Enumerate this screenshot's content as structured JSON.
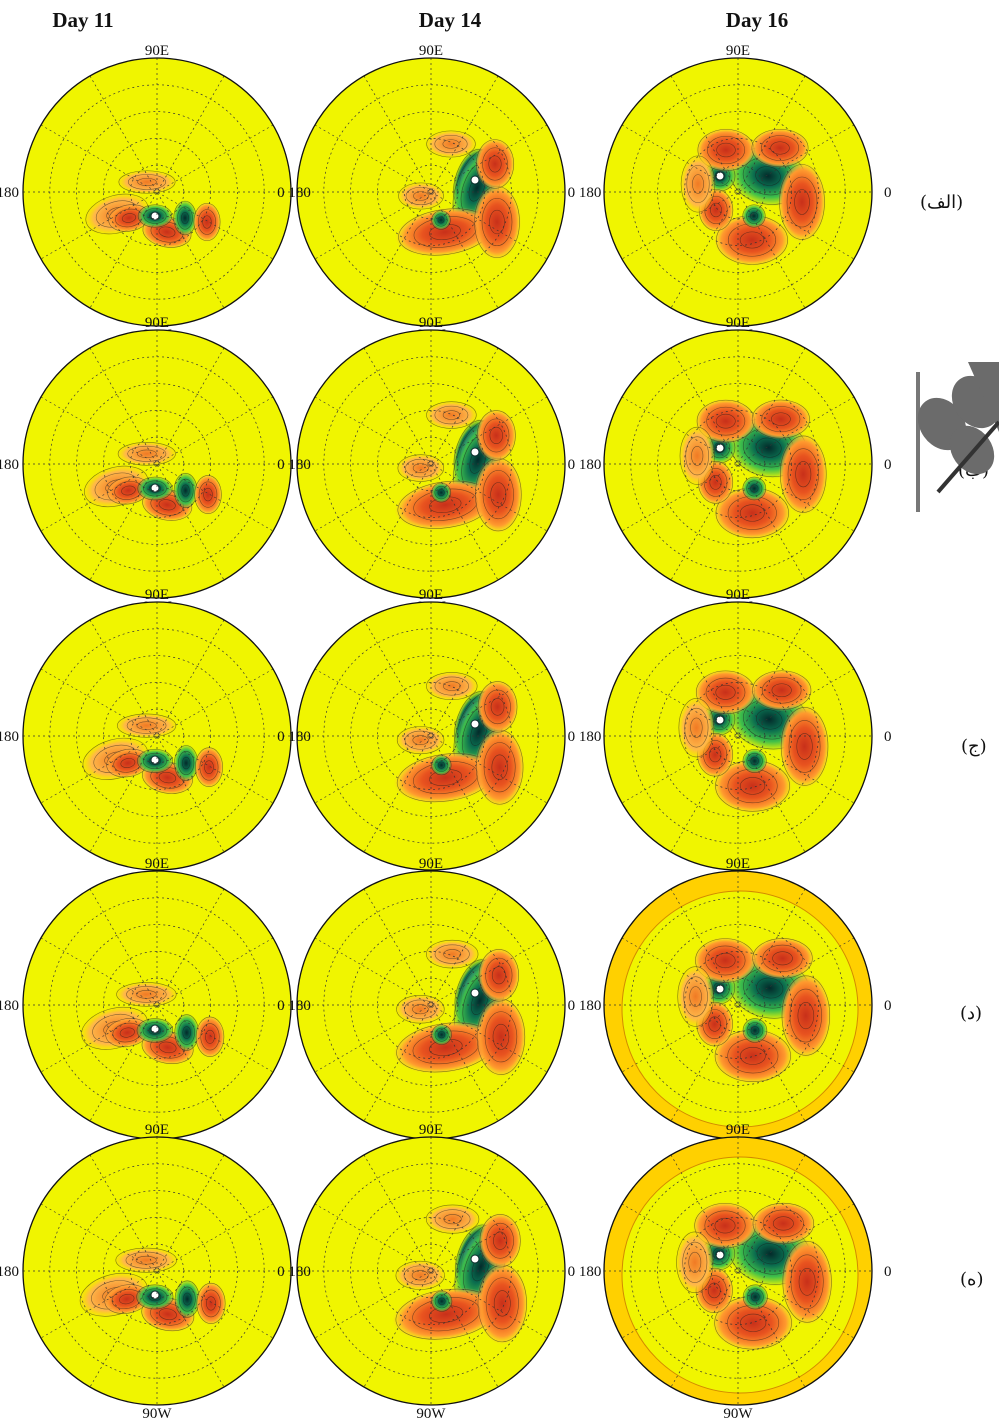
{
  "columns": [
    "Day 11",
    "Day 14",
    "Day 16"
  ],
  "rows": [
    "(الف)",
    "(ب)",
    "(ج)",
    "(د)",
    "(ه)"
  ],
  "map_labels": {
    "top": "90E",
    "bottom": "90W",
    "left": "180",
    "right": "0",
    "mid_pair": "0 180"
  },
  "colors": {
    "background": "#f0f500",
    "warm_fill": "#ffd000",
    "positive_1": "#ff9a2e",
    "positive_2": "#e8531f",
    "negative_1": "#3fbf4a",
    "negative_2": "#0a6b4e",
    "negative_3": "#4b2aa8",
    "grid": "#333333"
  }
}
